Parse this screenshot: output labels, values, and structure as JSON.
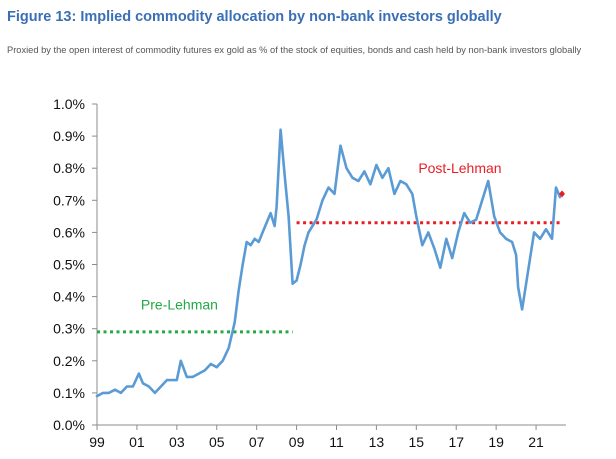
{
  "figure": {
    "title": "Figure 13: Implied commodity allocation by non-bank investors globally",
    "subtitle": "Proxied by the open interest of commodity futures ex gold as % of the stock of equities, bonds and cash held by non-bank investors globally"
  },
  "chart_data": {
    "type": "line",
    "title": "Figure 13: Implied commodity allocation by non-bank investors globally",
    "xlabel": "",
    "ylabel": "",
    "ylim": [
      0,
      1.0
    ],
    "xlim": [
      1999,
      2022.5
    ],
    "y_ticks": [
      0,
      0.1,
      0.2,
      0.3,
      0.4,
      0.5,
      0.6,
      0.7,
      0.8,
      0.9,
      1.0
    ],
    "y_tick_labels": [
      "0.0%",
      "0.1%",
      "0.2%",
      "0.3%",
      "0.4%",
      "0.5%",
      "0.6%",
      "0.7%",
      "0.8%",
      "0.9%",
      "1.0%"
    ],
    "x_ticks": [
      1999,
      2001,
      2003,
      2005,
      2007,
      2009,
      2011,
      2013,
      2015,
      2017,
      2019,
      2021
    ],
    "x_tick_labels": [
      "99",
      "01",
      "03",
      "05",
      "07",
      "09",
      "11",
      "13",
      "15",
      "17",
      "19",
      "21"
    ],
    "colors": {
      "line": "#5b9bd5",
      "pre_lehman": "#22aa44",
      "post_lehman": "#e81e25",
      "title": "#3a6fb5"
    },
    "series": [
      {
        "name": "Implied commodity allocation",
        "x": [
          1999.0,
          1999.3,
          1999.6,
          1999.9,
          2000.2,
          2000.5,
          2000.8,
          2001.1,
          2001.3,
          2001.6,
          2001.9,
          2002.2,
          2002.5,
          2002.8,
          2003.0,
          2003.2,
          2003.5,
          2003.8,
          2004.1,
          2004.4,
          2004.7,
          2005.0,
          2005.3,
          2005.6,
          2005.9,
          2006.1,
          2006.3,
          2006.5,
          2006.7,
          2006.9,
          2007.1,
          2007.3,
          2007.5,
          2007.7,
          2007.9,
          2008.0,
          2008.2,
          2008.4,
          2008.6,
          2008.8,
          2009.0,
          2009.2,
          2009.4,
          2009.6,
          2009.8,
          2010.0,
          2010.3,
          2010.6,
          2010.9,
          2011.2,
          2011.5,
          2011.8,
          2012.1,
          2012.4,
          2012.7,
          2013.0,
          2013.3,
          2013.6,
          2013.9,
          2014.2,
          2014.5,
          2014.8,
          2015.0,
          2015.3,
          2015.6,
          2015.9,
          2016.2,
          2016.5,
          2016.8,
          2017.1,
          2017.4,
          2017.7,
          2018.0,
          2018.3,
          2018.6,
          2018.9,
          2019.2,
          2019.5,
          2019.8,
          2020.0,
          2020.1,
          2020.3,
          2020.6,
          2020.9,
          2021.2,
          2021.5,
          2021.8,
          2022.0,
          2022.2
        ],
        "values": [
          0.09,
          0.1,
          0.1,
          0.11,
          0.1,
          0.12,
          0.12,
          0.16,
          0.13,
          0.12,
          0.1,
          0.12,
          0.14,
          0.14,
          0.14,
          0.2,
          0.15,
          0.15,
          0.16,
          0.17,
          0.19,
          0.18,
          0.2,
          0.24,
          0.32,
          0.42,
          0.5,
          0.57,
          0.56,
          0.58,
          0.57,
          0.6,
          0.63,
          0.66,
          0.62,
          0.68,
          0.92,
          0.78,
          0.65,
          0.44,
          0.45,
          0.5,
          0.56,
          0.6,
          0.62,
          0.64,
          0.7,
          0.74,
          0.72,
          0.87,
          0.8,
          0.77,
          0.76,
          0.79,
          0.75,
          0.81,
          0.77,
          0.8,
          0.72,
          0.76,
          0.75,
          0.72,
          0.65,
          0.56,
          0.6,
          0.55,
          0.49,
          0.58,
          0.52,
          0.6,
          0.66,
          0.63,
          0.64,
          0.7,
          0.76,
          0.65,
          0.6,
          0.58,
          0.57,
          0.53,
          0.43,
          0.36,
          0.48,
          0.6,
          0.58,
          0.61,
          0.58,
          0.74,
          0.71
        ]
      }
    ],
    "reference_lines": [
      {
        "label": "Pre-Lehman",
        "value": 0.29,
        "x_start": 1999.0,
        "x_end": 2008.8
      },
      {
        "label": "Post-Lehman",
        "value": 0.63,
        "x_start": 2009.0,
        "x_end": 2022.3
      }
    ],
    "annotations": [
      {
        "text": "Pre-Lehman",
        "x": 2001.2,
        "y": 0.36
      },
      {
        "text": "Post-Lehman",
        "x": 2015.1,
        "y": 0.785
      }
    ],
    "end_marker": {
      "x": 2022.3,
      "y": 0.72
    }
  }
}
